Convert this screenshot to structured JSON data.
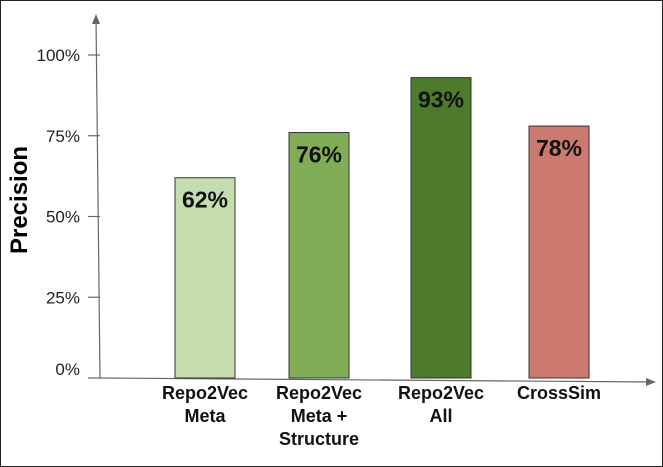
{
  "chart_data": {
    "type": "bar",
    "ylabel": "Precision",
    "yticks": [
      "0%",
      "25%",
      "50%",
      "75%",
      "100%"
    ],
    "ylim": [
      0,
      100
    ],
    "categories": [
      [
        "Repo2Vec",
        "Meta"
      ],
      [
        "Repo2Vec",
        "Meta +",
        "Structure"
      ],
      [
        "Repo2Vec",
        "All"
      ],
      [
        "CrossSim"
      ]
    ],
    "values": [
      62,
      76,
      93,
      78
    ],
    "labels": [
      "62%",
      "76%",
      "93%",
      "78%"
    ],
    "colors": [
      "#c5dcae",
      "#82ad57",
      "#4e7a2b",
      "#cc7a6f"
    ],
    "grid": false,
    "legend": "none"
  }
}
